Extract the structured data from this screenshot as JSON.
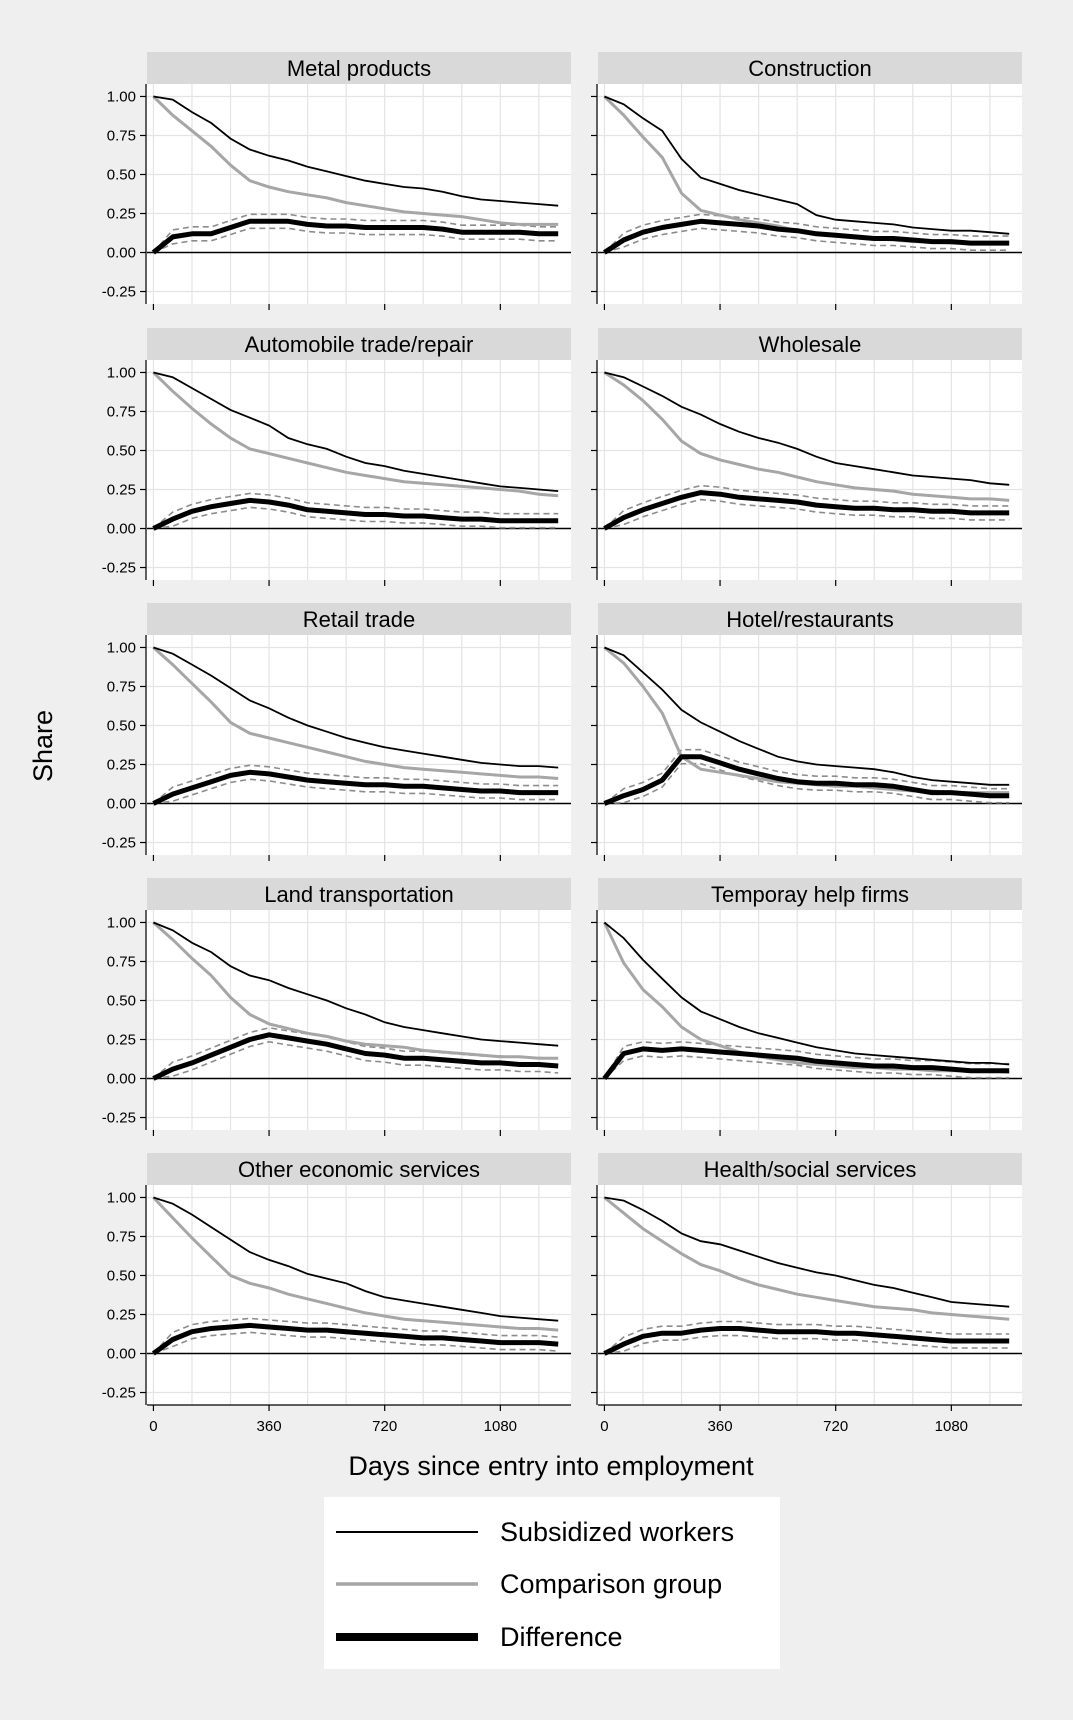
{
  "chart_data": {
    "type": "line",
    "layout": "faceted 5x2 small multiples",
    "ylabel": "Share",
    "xlabel": "Days since entry into employment",
    "x_ticks": [
      0,
      360,
      720,
      1080
    ],
    "y_ticks": [
      -0.25,
      0.0,
      0.25,
      0.5,
      0.75,
      1.0
    ],
    "y_tick_labels": [
      "-0.25",
      "0.00",
      "0.25",
      "0.50",
      "0.75",
      "1.00"
    ],
    "xlim": [
      -20,
      1300
    ],
    "ylim": [
      -0.33,
      1.08
    ],
    "grid": true,
    "legend": {
      "placement": "bottom-center",
      "items": [
        {
          "key": "subsidized",
          "label": "Subsidized workers",
          "color": "#000000",
          "style": "thin-solid"
        },
        {
          "key": "comparison",
          "label": "Comparison group",
          "color": "#a6a6a6",
          "style": "solid"
        },
        {
          "key": "difference",
          "label": "Difference",
          "color": "#000000",
          "style": "thick-solid"
        }
      ]
    },
    "ci_style": {
      "color": "#8c8c8c",
      "style": "dashed"
    },
    "x": [
      0,
      60,
      120,
      180,
      240,
      300,
      360,
      420,
      480,
      540,
      600,
      660,
      720,
      780,
      840,
      900,
      960,
      1020,
      1080,
      1140,
      1200,
      1260
    ],
    "panels": [
      {
        "title": "Metal products",
        "subsidized": [
          1.0,
          0.98,
          0.9,
          0.83,
          0.73,
          0.66,
          0.62,
          0.59,
          0.55,
          0.52,
          0.49,
          0.46,
          0.44,
          0.42,
          0.41,
          0.39,
          0.36,
          0.34,
          0.33,
          0.32,
          0.31,
          0.3
        ],
        "comparison": [
          1.0,
          0.88,
          0.78,
          0.68,
          0.56,
          0.46,
          0.42,
          0.39,
          0.37,
          0.35,
          0.32,
          0.3,
          0.28,
          0.26,
          0.25,
          0.24,
          0.23,
          0.21,
          0.19,
          0.18,
          0.18,
          0.18
        ],
        "difference": [
          0.0,
          0.1,
          0.12,
          0.12,
          0.16,
          0.2,
          0.2,
          0.2,
          0.18,
          0.17,
          0.17,
          0.16,
          0.16,
          0.16,
          0.16,
          0.15,
          0.13,
          0.13,
          0.13,
          0.13,
          0.12,
          0.12
        ]
      },
      {
        "title": "Construction",
        "subsidized": [
          1.0,
          0.95,
          0.86,
          0.78,
          0.6,
          0.48,
          0.44,
          0.4,
          0.37,
          0.34,
          0.31,
          0.24,
          0.21,
          0.2,
          0.19,
          0.18,
          0.16,
          0.15,
          0.14,
          0.14,
          0.13,
          0.12
        ],
        "comparison": [
          1.0,
          0.88,
          0.74,
          0.61,
          0.38,
          0.27,
          0.24,
          0.21,
          0.19,
          0.17,
          0.14,
          0.12,
          0.11,
          0.1,
          0.09,
          0.08,
          0.07,
          0.07,
          0.06,
          0.06,
          0.06,
          0.06
        ],
        "difference": [
          0.0,
          0.08,
          0.13,
          0.16,
          0.18,
          0.2,
          0.19,
          0.18,
          0.17,
          0.15,
          0.14,
          0.12,
          0.11,
          0.1,
          0.09,
          0.09,
          0.08,
          0.07,
          0.07,
          0.06,
          0.06,
          0.06
        ]
      },
      {
        "title": "Automobile trade/repair",
        "subsidized": [
          1.0,
          0.97,
          0.9,
          0.83,
          0.76,
          0.71,
          0.66,
          0.58,
          0.54,
          0.51,
          0.46,
          0.42,
          0.4,
          0.37,
          0.35,
          0.33,
          0.31,
          0.29,
          0.27,
          0.26,
          0.25,
          0.24
        ],
        "comparison": [
          1.0,
          0.88,
          0.77,
          0.67,
          0.58,
          0.51,
          0.48,
          0.45,
          0.42,
          0.39,
          0.36,
          0.34,
          0.32,
          0.3,
          0.29,
          0.28,
          0.27,
          0.26,
          0.25,
          0.24,
          0.22,
          0.21
        ],
        "difference": [
          0.0,
          0.06,
          0.11,
          0.14,
          0.16,
          0.18,
          0.17,
          0.15,
          0.12,
          0.11,
          0.1,
          0.09,
          0.09,
          0.08,
          0.08,
          0.07,
          0.06,
          0.06,
          0.05,
          0.05,
          0.05,
          0.05
        ]
      },
      {
        "title": "Wholesale",
        "subsidized": [
          1.0,
          0.97,
          0.91,
          0.85,
          0.78,
          0.73,
          0.67,
          0.62,
          0.58,
          0.55,
          0.51,
          0.46,
          0.42,
          0.4,
          0.38,
          0.36,
          0.34,
          0.33,
          0.32,
          0.31,
          0.29,
          0.28
        ],
        "comparison": [
          1.0,
          0.92,
          0.82,
          0.7,
          0.56,
          0.48,
          0.44,
          0.41,
          0.38,
          0.36,
          0.33,
          0.3,
          0.28,
          0.26,
          0.25,
          0.24,
          0.22,
          0.21,
          0.2,
          0.19,
          0.19,
          0.18
        ],
        "difference": [
          0.0,
          0.07,
          0.12,
          0.16,
          0.2,
          0.23,
          0.22,
          0.2,
          0.19,
          0.18,
          0.17,
          0.15,
          0.14,
          0.13,
          0.13,
          0.12,
          0.12,
          0.11,
          0.11,
          0.1,
          0.1,
          0.1
        ]
      },
      {
        "title": "Retail trade",
        "subsidized": [
          1.0,
          0.96,
          0.89,
          0.82,
          0.74,
          0.66,
          0.61,
          0.55,
          0.5,
          0.46,
          0.42,
          0.39,
          0.36,
          0.34,
          0.32,
          0.3,
          0.28,
          0.26,
          0.25,
          0.24,
          0.24,
          0.23
        ],
        "comparison": [
          1.0,
          0.89,
          0.77,
          0.65,
          0.52,
          0.45,
          0.42,
          0.39,
          0.36,
          0.33,
          0.3,
          0.27,
          0.25,
          0.23,
          0.22,
          0.21,
          0.2,
          0.19,
          0.18,
          0.17,
          0.17,
          0.16
        ],
        "difference": [
          0.0,
          0.06,
          0.1,
          0.14,
          0.18,
          0.2,
          0.19,
          0.17,
          0.15,
          0.14,
          0.13,
          0.12,
          0.12,
          0.11,
          0.11,
          0.1,
          0.09,
          0.08,
          0.08,
          0.07,
          0.07,
          0.07
        ]
      },
      {
        "title": "Hotel/restaurants",
        "subsidized": [
          1.0,
          0.95,
          0.84,
          0.73,
          0.6,
          0.52,
          0.46,
          0.4,
          0.35,
          0.3,
          0.27,
          0.25,
          0.24,
          0.23,
          0.22,
          0.2,
          0.17,
          0.15,
          0.14,
          0.13,
          0.12,
          0.12
        ],
        "comparison": [
          1.0,
          0.9,
          0.75,
          0.58,
          0.3,
          0.22,
          0.2,
          0.18,
          0.16,
          0.14,
          0.13,
          0.12,
          0.11,
          0.11,
          0.1,
          0.09,
          0.08,
          0.08,
          0.07,
          0.07,
          0.07,
          0.07
        ],
        "difference": [
          0.0,
          0.05,
          0.09,
          0.15,
          0.3,
          0.3,
          0.26,
          0.22,
          0.19,
          0.16,
          0.14,
          0.13,
          0.13,
          0.12,
          0.12,
          0.11,
          0.09,
          0.07,
          0.07,
          0.06,
          0.05,
          0.05
        ]
      },
      {
        "title": "Land transportation",
        "subsidized": [
          1.0,
          0.95,
          0.87,
          0.81,
          0.72,
          0.66,
          0.63,
          0.58,
          0.54,
          0.5,
          0.45,
          0.41,
          0.36,
          0.33,
          0.31,
          0.29,
          0.27,
          0.25,
          0.24,
          0.23,
          0.22,
          0.21
        ],
        "comparison": [
          1.0,
          0.89,
          0.77,
          0.66,
          0.52,
          0.41,
          0.35,
          0.32,
          0.29,
          0.27,
          0.24,
          0.22,
          0.21,
          0.2,
          0.18,
          0.17,
          0.16,
          0.15,
          0.14,
          0.14,
          0.13,
          0.13
        ],
        "difference": [
          0.0,
          0.06,
          0.1,
          0.15,
          0.2,
          0.25,
          0.28,
          0.26,
          0.24,
          0.22,
          0.19,
          0.16,
          0.15,
          0.13,
          0.13,
          0.12,
          0.11,
          0.1,
          0.1,
          0.09,
          0.09,
          0.08
        ]
      },
      {
        "title": "Temporay help firms",
        "subsidized": [
          1.0,
          0.9,
          0.76,
          0.64,
          0.52,
          0.43,
          0.38,
          0.33,
          0.29,
          0.26,
          0.23,
          0.2,
          0.18,
          0.16,
          0.15,
          0.14,
          0.13,
          0.12,
          0.11,
          0.1,
          0.1,
          0.09
        ],
        "comparison": [
          1.0,
          0.74,
          0.57,
          0.46,
          0.33,
          0.25,
          0.21,
          0.17,
          0.14,
          0.12,
          0.1,
          0.09,
          0.08,
          0.07,
          0.07,
          0.06,
          0.06,
          0.05,
          0.05,
          0.05,
          0.05,
          0.04
        ],
        "difference": [
          0.0,
          0.16,
          0.19,
          0.18,
          0.19,
          0.18,
          0.17,
          0.16,
          0.15,
          0.14,
          0.13,
          0.11,
          0.1,
          0.09,
          0.08,
          0.08,
          0.07,
          0.07,
          0.06,
          0.05,
          0.05,
          0.05
        ]
      },
      {
        "title": "Other economic services",
        "subsidized": [
          1.0,
          0.96,
          0.89,
          0.81,
          0.73,
          0.65,
          0.6,
          0.56,
          0.51,
          0.48,
          0.45,
          0.4,
          0.36,
          0.34,
          0.32,
          0.3,
          0.28,
          0.26,
          0.24,
          0.23,
          0.22,
          0.21
        ],
        "comparison": [
          1.0,
          0.87,
          0.74,
          0.62,
          0.5,
          0.45,
          0.42,
          0.38,
          0.35,
          0.32,
          0.29,
          0.26,
          0.24,
          0.22,
          0.21,
          0.2,
          0.19,
          0.18,
          0.17,
          0.16,
          0.16,
          0.15
        ],
        "difference": [
          0.0,
          0.09,
          0.14,
          0.16,
          0.17,
          0.18,
          0.17,
          0.16,
          0.15,
          0.15,
          0.14,
          0.13,
          0.12,
          0.11,
          0.1,
          0.1,
          0.09,
          0.08,
          0.07,
          0.07,
          0.07,
          0.06
        ]
      },
      {
        "title": "Health/social services",
        "subsidized": [
          1.0,
          0.98,
          0.92,
          0.85,
          0.77,
          0.72,
          0.7,
          0.66,
          0.62,
          0.58,
          0.55,
          0.52,
          0.5,
          0.47,
          0.44,
          0.42,
          0.39,
          0.36,
          0.33,
          0.32,
          0.31,
          0.3
        ],
        "comparison": [
          1.0,
          0.9,
          0.8,
          0.72,
          0.64,
          0.57,
          0.53,
          0.48,
          0.44,
          0.41,
          0.38,
          0.36,
          0.34,
          0.32,
          0.3,
          0.29,
          0.28,
          0.26,
          0.25,
          0.24,
          0.23,
          0.22
        ],
        "difference": [
          0.0,
          0.06,
          0.11,
          0.13,
          0.13,
          0.15,
          0.16,
          0.16,
          0.15,
          0.14,
          0.14,
          0.14,
          0.13,
          0.13,
          0.12,
          0.11,
          0.1,
          0.09,
          0.08,
          0.08,
          0.08,
          0.08
        ],
        "ci_half_width": 0.045
      }
    ],
    "ci_half_width": 0.045
  }
}
